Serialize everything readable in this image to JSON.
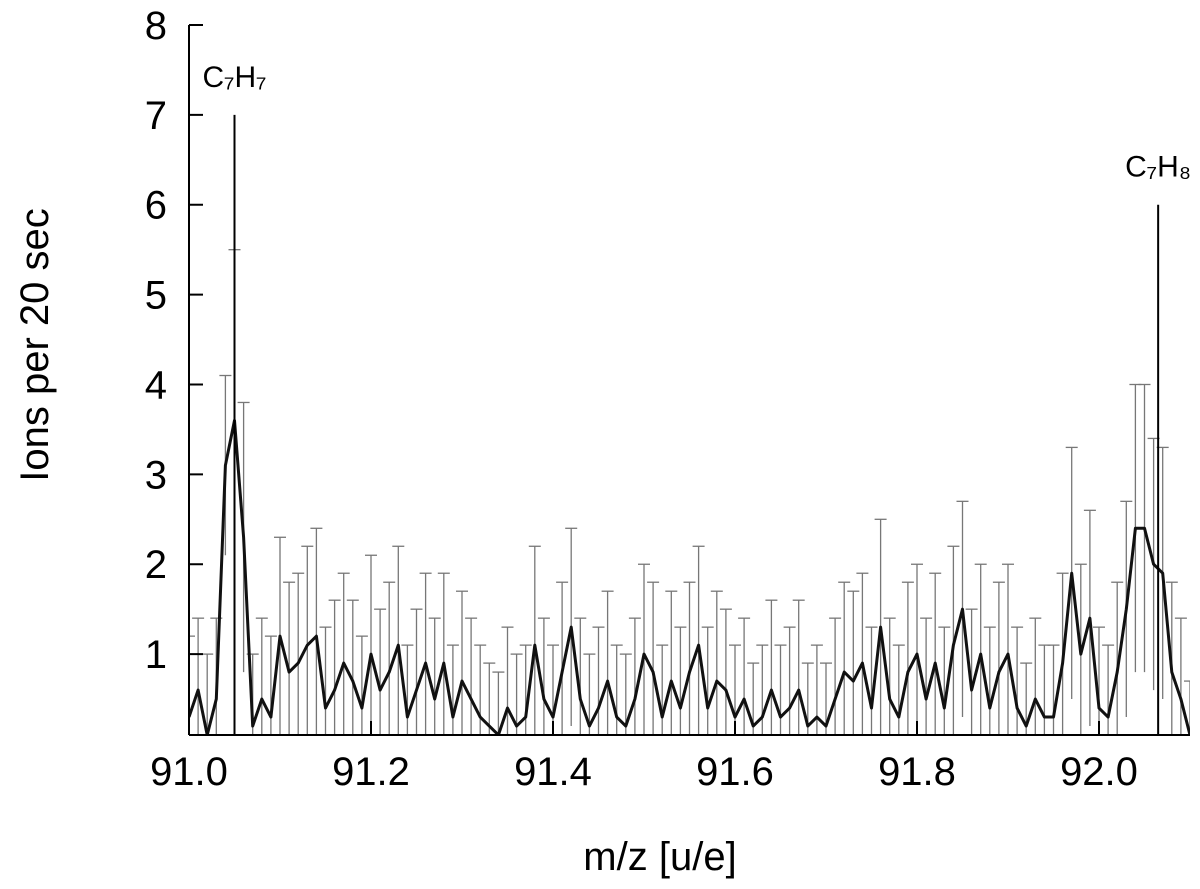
{
  "chart_data": {
    "type": "line",
    "xlabel": "m/z [u/e]",
    "ylabel": "Ions per 20 sec",
    "xlim": [
      91.0,
      92.1
    ],
    "ylim": [
      0.1,
      8
    ],
    "xticks": [
      {
        "value": 91.0,
        "label": "91.0"
      },
      91.2,
      91.4,
      91.6,
      91.8,
      {
        "value": 92.0,
        "label": "92.0"
      }
    ],
    "yticks": [
      1,
      2,
      3,
      4,
      5,
      6,
      7,
      8
    ],
    "annotations": [
      {
        "text": "C₇H₇",
        "x": 91.05,
        "y": 7
      },
      {
        "text": "C₇H₈",
        "x": 92.065,
        "y": 6
      }
    ],
    "x": [
      91.0,
      91.01,
      91.02,
      91.03,
      91.04,
      91.05,
      91.06,
      91.07,
      91.08,
      91.09,
      91.1,
      91.11,
      91.12,
      91.13,
      91.14,
      91.15,
      91.16,
      91.17,
      91.18,
      91.19,
      91.2,
      91.21,
      91.22,
      91.23,
      91.24,
      91.25,
      91.26,
      91.27,
      91.28,
      91.29,
      91.3,
      91.31,
      91.32,
      91.33,
      91.34,
      91.35,
      91.36,
      91.37,
      91.38,
      91.39,
      91.4,
      91.41,
      91.42,
      91.43,
      91.44,
      91.45,
      91.46,
      91.47,
      91.48,
      91.49,
      91.5,
      91.51,
      91.52,
      91.53,
      91.54,
      91.55,
      91.56,
      91.57,
      91.58,
      91.59,
      91.6,
      91.61,
      91.62,
      91.63,
      91.64,
      91.65,
      91.66,
      91.67,
      91.68,
      91.69,
      91.7,
      91.71,
      91.72,
      91.73,
      91.74,
      91.75,
      91.76,
      91.77,
      91.78,
      91.79,
      91.8,
      91.81,
      91.82,
      91.83,
      91.84,
      91.85,
      91.86,
      91.87,
      91.88,
      91.89,
      91.9,
      91.91,
      91.92,
      91.93,
      91.94,
      91.95,
      91.96,
      91.97,
      91.98,
      91.99,
      92.0,
      92.01,
      92.02,
      92.03,
      92.04,
      92.05,
      92.06,
      92.07,
      92.08,
      92.09,
      92.1
    ],
    "series": [
      {
        "color": "#111111",
        "error_color": "#777777",
        "values": [
          0.3,
          0.6,
          0.1,
          0.5,
          3.1,
          3.6,
          2.3,
          0.2,
          0.5,
          0.3,
          1.2,
          0.8,
          0.9,
          1.1,
          1.2,
          0.4,
          0.6,
          0.9,
          0.7,
          0.4,
          1.0,
          0.6,
          0.8,
          1.1,
          0.3,
          0.6,
          0.9,
          0.5,
          0.9,
          0.3,
          0.7,
          0.5,
          0.3,
          0.2,
          0.1,
          0.4,
          0.2,
          0.3,
          1.1,
          0.5,
          0.3,
          0.8,
          1.3,
          0.5,
          0.2,
          0.4,
          0.7,
          0.3,
          0.2,
          0.5,
          1.0,
          0.8,
          0.3,
          0.7,
          0.4,
          0.8,
          1.1,
          0.4,
          0.7,
          0.6,
          0.3,
          0.5,
          0.2,
          0.3,
          0.6,
          0.3,
          0.4,
          0.6,
          0.2,
          0.3,
          0.2,
          0.5,
          0.8,
          0.7,
          0.9,
          0.4,
          1.3,
          0.5,
          0.3,
          0.8,
          1.0,
          0.5,
          0.9,
          0.4,
          1.1,
          1.5,
          0.6,
          1.0,
          0.4,
          0.8,
          1.0,
          0.4,
          0.2,
          0.5,
          0.3,
          0.3,
          0.9,
          1.9,
          1.0,
          1.4,
          0.4,
          0.3,
          0.8,
          1.5,
          2.4,
          2.4,
          2.0,
          1.9,
          0.8,
          0.5,
          0.1
        ],
        "errors": [
          0.9,
          0.8,
          0.9,
          0.9,
          1.0,
          1.9,
          1.5,
          0.8,
          0.9,
          0.9,
          1.1,
          1.0,
          1.0,
          1.1,
          1.2,
          0.9,
          1.0,
          1.0,
          0.9,
          0.8,
          1.1,
          0.9,
          1.0,
          1.1,
          0.8,
          0.9,
          1.0,
          0.9,
          1.0,
          0.8,
          1.0,
          0.9,
          0.8,
          0.7,
          0.7,
          0.9,
          0.8,
          0.8,
          1.1,
          0.9,
          0.8,
          1.0,
          1.1,
          0.9,
          0.8,
          0.9,
          1.0,
          0.8,
          0.8,
          0.9,
          1.0,
          1.0,
          0.8,
          1.0,
          0.9,
          1.0,
          1.1,
          0.9,
          1.0,
          0.9,
          0.8,
          0.9,
          0.7,
          0.8,
          1.0,
          0.8,
          0.9,
          1.0,
          0.7,
          0.8,
          0.7,
          0.9,
          1.0,
          1.0,
          1.0,
          0.9,
          1.2,
          0.9,
          0.8,
          1.0,
          1.0,
          0.9,
          1.0,
          0.9,
          1.1,
          1.2,
          0.9,
          1.0,
          0.9,
          1.0,
          1.0,
          0.9,
          0.7,
          0.9,
          0.8,
          0.8,
          1.0,
          1.4,
          1.0,
          1.2,
          0.9,
          0.8,
          1.0,
          1.2,
          1.6,
          1.6,
          1.4,
          1.4,
          1.0,
          0.9,
          0.6
        ]
      }
    ]
  }
}
